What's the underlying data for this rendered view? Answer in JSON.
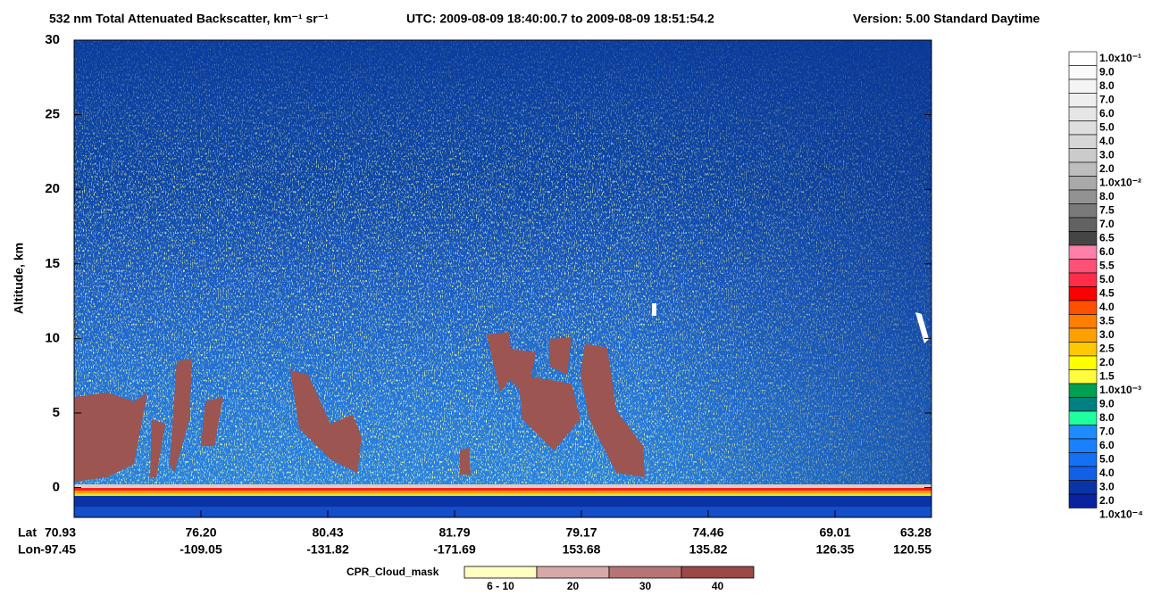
{
  "chart_data": {
    "type": "heatmap",
    "title": "532 nm Total Attenuated Backscatter, km⁻¹ sr⁻¹",
    "time_range": "UTC:  2009-08-09 18:40:00.7  to  2009-08-09 18:51:54.2",
    "version": "Version: 5.00  Standard  Daytime",
    "ylabel": "Altitude, km",
    "ylim": [
      -2,
      30
    ],
    "yticks": [
      0,
      5,
      10,
      15,
      20,
      25,
      30
    ],
    "x_axis": {
      "lat_label": "Lat",
      "lon_label": "Lon",
      "lat": [
        "70.93",
        "76.20",
        "80.43",
        "81.79",
        "79.17",
        "74.46",
        "69.01",
        "63.28"
      ],
      "lon": [
        "-97.45",
        "-109.05",
        "-131.82",
        "-171.69",
        "153.68",
        "135.82",
        "126.35",
        "120.55"
      ]
    },
    "colorbar": {
      "labels": [
        "1.0x10⁻¹",
        "9.0",
        "8.0",
        "7.0",
        "6.0",
        "5.0",
        "4.0",
        "3.0",
        "2.0",
        "1.0x10⁻²",
        "8.0",
        "7.5",
        "7.0",
        "6.5",
        "6.0",
        "5.5",
        "5.0",
        "4.5",
        "4.0",
        "3.5",
        "3.0",
        "2.5",
        "2.0",
        "1.5",
        "1.0x10⁻³",
        "9.0",
        "8.0",
        "7.0",
        "6.0",
        "5.0",
        "4.0",
        "3.0",
        "2.0",
        "1.0x10⁻⁴"
      ],
      "colors": [
        "#ffffff",
        "#fafafa",
        "#f4f4f4",
        "#eeeeee",
        "#e6e6e6",
        "#dedede",
        "#d6d6d6",
        "#cbcbcb",
        "#bdbdbd",
        "#a9a9a9",
        "#929292",
        "#7a7a7a",
        "#626262",
        "#454545",
        "#ff80a8",
        "#ff5078",
        "#ff2d4a",
        "#ff0000",
        "#ff5000",
        "#ff7e00",
        "#ffa000",
        "#ffc800",
        "#ffff00",
        "#fffc40",
        "#00a050",
        "#008080",
        "#20ffa0",
        "#1e8cff",
        "#1a80ff",
        "#1670f4",
        "#1260e6",
        "#0a34a6",
        "#0822a0"
      ]
    },
    "cloud_mask": {
      "title": "CPR_Cloud_mask",
      "categories": [
        "6 - 10",
        "20",
        "30",
        "40"
      ],
      "colors": [
        "#ffffc0",
        "#d8a8a8",
        "#b87474",
        "#9a4848"
      ]
    }
  }
}
